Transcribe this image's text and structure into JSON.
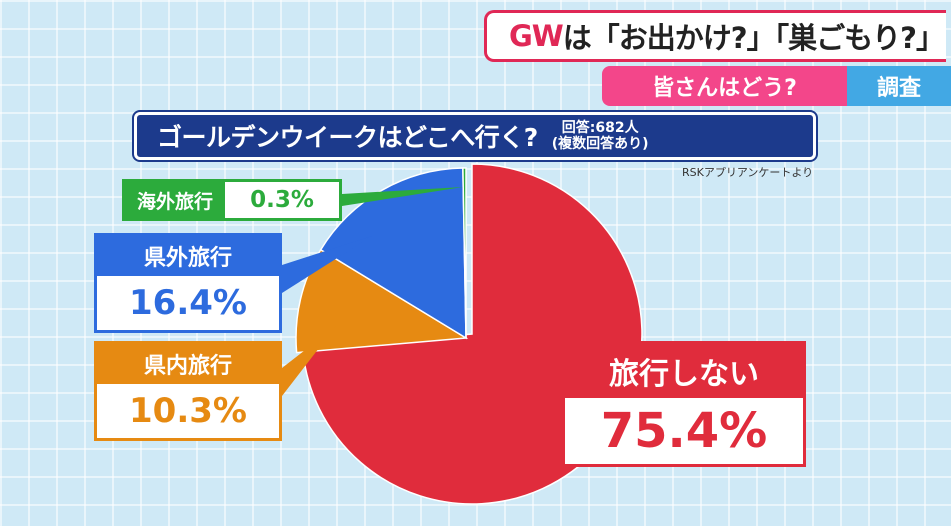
{
  "header": {
    "gw": "GW",
    "headline_rest": "は「お出かけ?」「巣ごもり?」",
    "subheadline": "皆さんはどう?",
    "tag": "調査"
  },
  "title": {
    "main": "ゴールデンウイークはどこへ行く?",
    "respondents": "回答:682人",
    "note": "(複数回答あり)"
  },
  "source": "RSKアプリアンケートより",
  "colors": {
    "shinai": "#e02c3c",
    "kennai": "#e68a12",
    "kengai": "#2d6bde",
    "kaigai": "#2cab3c",
    "header_accent": "#e02856",
    "title_bar": "#1c3a8c"
  },
  "chart_data": {
    "type": "pie",
    "title": "ゴールデンウイークはどこへ行く?",
    "unit": "%",
    "categories": [
      "旅行しない",
      "県内旅行",
      "県外旅行",
      "海外旅行"
    ],
    "values": [
      75.4,
      10.3,
      16.4,
      0.3
    ],
    "labels": [
      "75.4%",
      "10.3%",
      "16.4%",
      "0.3%"
    ],
    "legend": "callouts"
  }
}
